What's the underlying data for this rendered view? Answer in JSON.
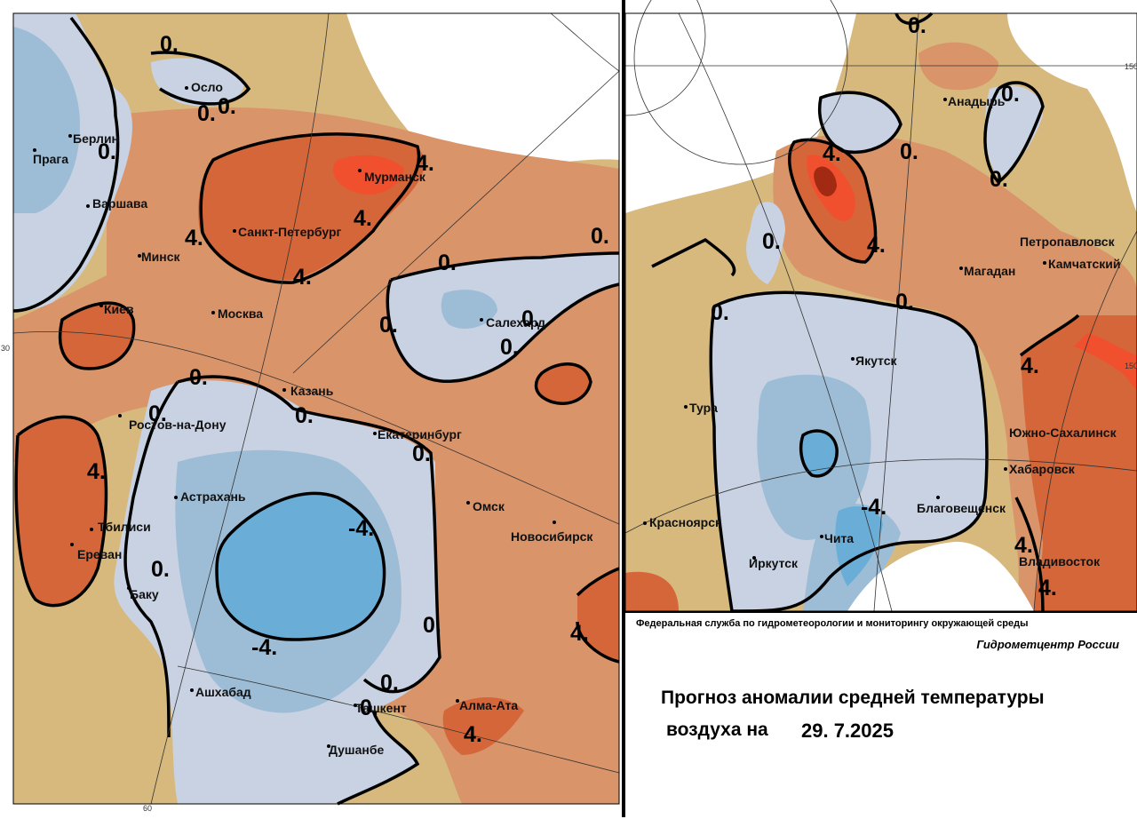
{
  "agency": "Федеральная служба по гидрометеорологии и мониторингу окружающей среды",
  "center": "Гидрометцентр России",
  "title_line1": "Прогноз аномалии средней температуры",
  "title_line2": "воздуха на",
  "date": "29. 7.2025",
  "colors": {
    "cold_strong": "#6aaed8",
    "cold_medium": "#9dbdd6",
    "cold_light": "#c8d2e2",
    "neutral": "#d7b97e",
    "warm_light": "#d9946a",
    "warm_medium": "#d4663a",
    "warm_strong": "#f0502e",
    "warm_extreme": "#a32a12"
  },
  "left_map": {
    "cities": [
      "Осло",
      "Берлин",
      "Прага",
      "Варшава",
      "Минск",
      "Киев",
      "Москва",
      "Санкт-Петербург",
      "Мурманск",
      "Казань",
      "Ростов-на-Дону",
      "Екатеринбург",
      "Салехард",
      "Астрахань",
      "Тбилиси",
      "Ереван",
      "Баку",
      "Омск",
      "Новосибирск",
      "Ашхабад",
      "Ташкент",
      "Алма-Ата",
      "Душанбе"
    ],
    "isolines": [
      "0.",
      "0.",
      "0.",
      "0.",
      "4.",
      "4.",
      "4.",
      "4.",
      "0.",
      "0.",
      "0.",
      "0.",
      "0.",
      "0.",
      "0.",
      "0.",
      "4.",
      "0.",
      "-4.",
      "-4.",
      "0.",
      "0.",
      "4.",
      "0.",
      "4.",
      "0."
    ],
    "degree_labels": [
      "30",
      "60"
    ]
  },
  "right_map": {
    "cities": [
      "Анадырь",
      "Петропавловск",
      "Камчатский",
      "Магадан",
      "Якутск",
      "Тура",
      "Южно-Сахалинск",
      "Хабаровск",
      "Благовещенск",
      "Красноярск",
      "Чита",
      "Иркутск",
      "Владивосток"
    ],
    "isolines": [
      "0.",
      "0.",
      "4.",
      "0.",
      "0.",
      "4.",
      "0.",
      "0.",
      "4.",
      "0.",
      "-4.",
      "4.",
      "4."
    ],
    "degree_labels": [
      "150",
      "150"
    ]
  }
}
